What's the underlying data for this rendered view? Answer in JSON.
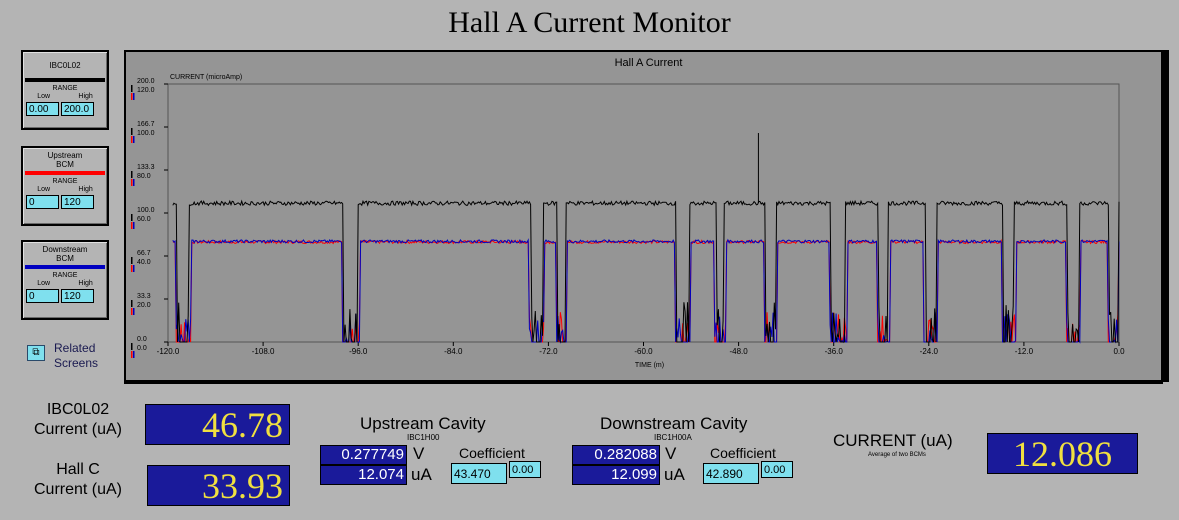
{
  "window": {
    "title": "Hall A Current Monitor"
  },
  "controls": [
    {
      "name": "IBC0L02",
      "color": "#000000",
      "range_label": "RANGE",
      "low_label": "Low",
      "high_label": "High",
      "low": "0.00",
      "high": "200.0"
    },
    {
      "name": "Upstream\nBCM",
      "color": "#ff0000",
      "range_label": "RANGE",
      "low_label": "Low",
      "high_label": "High",
      "low": "0",
      "high": "120"
    },
    {
      "name": "Downstream\nBCM",
      "color": "#0000c0",
      "range_label": "RANGE",
      "low_label": "Low",
      "high_label": "High",
      "low": "0",
      "high": "120"
    }
  ],
  "related": {
    "label": "Related\nScreens",
    "icon": "related-screens-icon"
  },
  "chart_data": {
    "type": "line",
    "title": "Hall A Current",
    "ylabel": "CURRENT (microAmp)",
    "xlabel": "TIME (m)",
    "xlim": [
      -120,
      0
    ],
    "x_ticks": [
      "-120.0",
      "-108.0",
      "-96.0",
      "-84.0",
      "-72.0",
      "-60.0",
      "-48.0",
      "-36.0",
      "-24.0",
      "-12.0",
      "0.0"
    ],
    "y_ticks_black": [
      "0.0",
      "33.3",
      "66.7",
      "100.0",
      "133.3",
      "166.7",
      "200.0"
    ],
    "y_ticks_color": [
      "0.0",
      "20.0",
      "40.0",
      "60.0",
      "80.0",
      "100.0",
      "120.0"
    ],
    "grid": false,
    "series": [
      {
        "name": "IBC0L02",
        "color": "#000000",
        "ylim": [
          0,
          200
        ],
        "high": 107.6,
        "outages": [
          [
            -118.9,
            -117.3
          ],
          [
            -97.8,
            -96.0
          ],
          [
            -74.2,
            -72.7
          ],
          [
            -70.8,
            -69.8
          ],
          [
            -55.8,
            -54.2
          ],
          [
            -50.8,
            -49.8
          ],
          [
            -44.6,
            -43.3
          ],
          [
            -36.3,
            -34.5
          ],
          [
            -30.3,
            -29.1
          ],
          [
            -24.4,
            -23.0
          ],
          [
            -14.6,
            -13.2
          ],
          [
            -6.5,
            -5.0
          ],
          [
            -1.2,
            0
          ]
        ],
        "spike": [
          -45.5,
          162
        ]
      },
      {
        "name": "Upstream BCM",
        "color": "#ff0000",
        "ylim": [
          0,
          120
        ],
        "high": 46.5,
        "outages": [
          [
            -119.0,
            -117.1
          ],
          [
            -98.0,
            -95.8
          ],
          [
            -74.4,
            -72.5
          ],
          [
            -71.0,
            -69.6
          ],
          [
            -56.0,
            -54.0
          ],
          [
            -51.0,
            -49.6
          ],
          [
            -44.8,
            -43.1
          ],
          [
            -36.5,
            -34.3
          ],
          [
            -30.5,
            -28.9
          ],
          [
            -24.6,
            -22.8
          ],
          [
            -14.8,
            -13.0
          ],
          [
            -6.7,
            -4.8
          ],
          [
            -1.4,
            0
          ]
        ]
      },
      {
        "name": "Downstream BCM",
        "color": "#0000c0",
        "ylim": [
          0,
          120
        ],
        "high": 46.8,
        "outages": [
          [
            -119.0,
            -117.1
          ],
          [
            -98.0,
            -95.8
          ],
          [
            -74.4,
            -72.5
          ],
          [
            -71.0,
            -69.6
          ],
          [
            -56.0,
            -54.0
          ],
          [
            -51.0,
            -49.6
          ],
          [
            -44.8,
            -43.1
          ],
          [
            -36.5,
            -34.3
          ],
          [
            -30.5,
            -28.9
          ],
          [
            -24.6,
            -22.8
          ],
          [
            -14.8,
            -13.0
          ],
          [
            -6.7,
            -4.8
          ],
          [
            -1.4,
            0
          ]
        ]
      }
    ]
  },
  "readouts": {
    "ibc0l02": {
      "label": "IBC0L02\nCurrent (uA)",
      "value": "46.78"
    },
    "hallc": {
      "label": "Hall C\nCurrent (uA)",
      "value": "33.93"
    },
    "upstream": {
      "title": "Upstream Cavity",
      "pv": "IBC1H00",
      "volts": "0.277749",
      "volts_unit": "V",
      "amps": "12.074",
      "amps_unit": "uA",
      "coef_label": "Coefficient",
      "coef": "43.470",
      "offset": "0.00"
    },
    "downstream": {
      "title": "Downstream Cavity",
      "pv": "IBC1H00A",
      "volts": "0.282088",
      "volts_unit": "V",
      "amps": "12.099",
      "amps_unit": "uA",
      "coef_label": "Coefficient",
      "coef": "42.890",
      "offset": "0.00"
    },
    "current": {
      "label": "CURRENT (uA)",
      "sublabel": "Average of two BCMs",
      "value": "12.086"
    }
  }
}
